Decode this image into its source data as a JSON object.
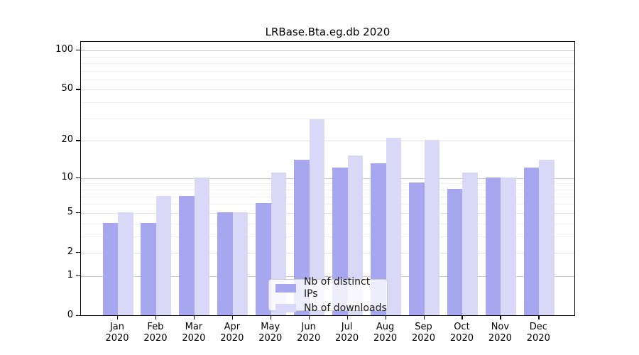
{
  "chart_data": {
    "type": "bar",
    "title": "LRBase.Bta.eg.db 2020",
    "categories": [
      "Jan 2020",
      "Feb 2020",
      "Mar 2020",
      "Apr 2020",
      "May 2020",
      "Jun 2020",
      "Jul 2020",
      "Aug 2020",
      "Sep 2020",
      "Oct 2020",
      "Nov 2020",
      "Dec 2020"
    ],
    "series": [
      {
        "name": "Nb of distinct IPs",
        "color": "#a7a7f0",
        "values": [
          4,
          4,
          7,
          5,
          6,
          14,
          12,
          13,
          9,
          8,
          10,
          12
        ]
      },
      {
        "name": "Nb of downloads",
        "color": "#d9d9f7",
        "values": [
          5,
          7,
          10,
          5,
          11,
          29,
          15,
          21,
          20,
          11,
          10,
          14
        ]
      }
    ],
    "xlabel": "",
    "ylabel": "",
    "yscale": "log10(1+x)",
    "yticks": [
      0,
      1,
      2,
      5,
      10,
      20,
      50,
      100
    ],
    "ylim": [
      0,
      100
    ],
    "grid": true,
    "legend_position": "inside-bottom-center",
    "colors": {
      "grid_major": "#c9c9c9",
      "grid_mid": "#e2e2e2",
      "grid_minor": "#f0f0f0",
      "axis": "#000000",
      "background": "#ffffff"
    }
  }
}
